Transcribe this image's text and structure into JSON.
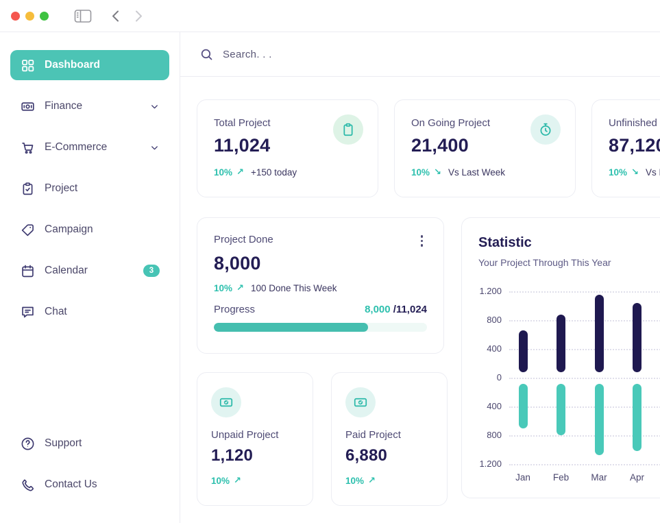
{
  "accent_color": "#47C4B5",
  "navy_color": "#1F1950",
  "window": {
    "traffic_lights": [
      "close",
      "minimize",
      "zoom"
    ],
    "toolbar": {
      "back": "chevron-left",
      "forward": "chevron-right",
      "toggle": "sidebar-toggle"
    }
  },
  "sidebar": {
    "items": [
      {
        "label": "Dashboard",
        "icon": "grid-icon",
        "active": true
      },
      {
        "label": "Finance",
        "icon": "money-icon",
        "chevron": true
      },
      {
        "label": "E-Commerce",
        "icon": "cart-icon",
        "chevron": true
      },
      {
        "label": "Project",
        "icon": "clipboard-check-icon"
      },
      {
        "label": "Campaign",
        "icon": "tag-icon"
      },
      {
        "label": "Calendar",
        "icon": "calendar-icon",
        "badge": "3"
      },
      {
        "label": "Chat",
        "icon": "chat-icon"
      }
    ],
    "footer_items": [
      {
        "label": "Support",
        "icon": "help-icon"
      },
      {
        "label": "Contact Us",
        "icon": "phone-icon"
      }
    ]
  },
  "search": {
    "placeholder": "Search. . ."
  },
  "stat_cards": [
    {
      "label": "Total Project",
      "value": "11,024",
      "delta": "10%",
      "trend": "up",
      "note": "+150 today",
      "icon": "clipboard-icon",
      "icon_bg": "#DEF3E6"
    },
    {
      "label": "On Going Project",
      "value": "21,400",
      "delta": "10%",
      "trend": "down",
      "note": "Vs Last Week",
      "icon": "stopwatch-icon",
      "icon_bg": "#E1F4F1"
    },
    {
      "label": "Unfinished Project",
      "value": "87,120",
      "delta": "10%",
      "trend": "down",
      "note": "Vs Last Week"
    }
  ],
  "project_done": {
    "label": "Project Done",
    "value": "8,000",
    "delta": "10%",
    "trend": "up",
    "note": "100 Done This Week",
    "progress_label": "Progress",
    "progress_current": "8,000",
    "progress_total": "/11,024",
    "progress_pct": 72.5
  },
  "mini_cards": [
    {
      "label": "Unpaid Project",
      "value": "1,120",
      "delta": "10%",
      "trend": "up",
      "icon": "banknote-check-icon",
      "icon_bg": "#E1F4F1"
    },
    {
      "label": "Paid Project",
      "value": "6,880",
      "delta": "10%",
      "trend": "up",
      "icon": "banknote-check-icon",
      "icon_bg": "#E1F4F1"
    }
  ],
  "chart_data": {
    "type": "bar",
    "title": "Statistic",
    "subtitle": "Your Project Through This Year",
    "categories": [
      "Jan",
      "Feb",
      "Mar",
      "Apr"
    ],
    "series": [
      {
        "name": "above-zero",
        "color": "#1F1950",
        "values": [
          660,
          880,
          1150,
          1040
        ]
      },
      {
        "name": "below-zero",
        "color": "#49C9B9",
        "values": [
          -700,
          -800,
          -1080,
          -1020
        ]
      }
    ],
    "y_ticks": [
      "1.200",
      "800",
      "400",
      "0",
      "400",
      "800",
      "1.200"
    ],
    "ylim": [
      -1200,
      1200
    ],
    "grid": "horizontal-dotted",
    "legend": "none"
  }
}
